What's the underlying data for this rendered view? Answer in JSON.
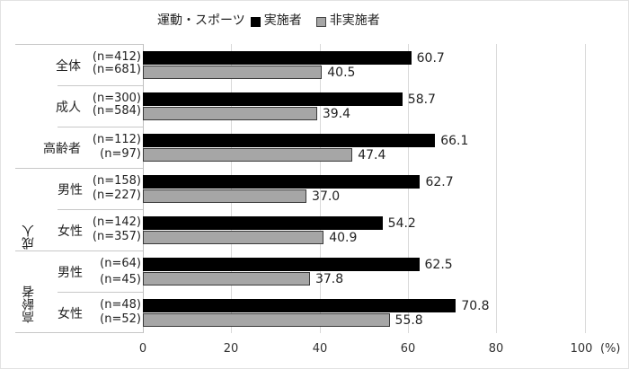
{
  "chart_data": {
    "type": "bar",
    "orientation": "horizontal",
    "legend_title": "運動・スポーツ",
    "legend_position": "top",
    "xlabel": "(%)",
    "xlim": [
      0,
      100
    ],
    "xticks": [
      "0",
      "20",
      "40",
      "60",
      "80",
      "100"
    ],
    "grid": true,
    "categories": [
      {
        "group": "",
        "label": "全体",
        "n_active": "(n=412)",
        "n_inactive": "(n=681)"
      },
      {
        "group": "",
        "label": "成人",
        "n_active": "(n=300)",
        "n_inactive": "(n=584)"
      },
      {
        "group": "",
        "label": "高齢者",
        "n_active": "(n=112)",
        "n_inactive": "(n=97)"
      },
      {
        "group": "成人",
        "label": "男性",
        "n_active": "(n=158)",
        "n_inactive": "(n=227)"
      },
      {
        "group": "成人",
        "label": "女性",
        "n_active": "(n=142)",
        "n_inactive": "(n=357)"
      },
      {
        "group": "高齢者",
        "label": "男性",
        "n_active": "(n=64)",
        "n_inactive": "(n=45)"
      },
      {
        "group": "高齢者",
        "label": "女性",
        "n_active": "(n=48)",
        "n_inactive": "(n=52)"
      }
    ],
    "series": [
      {
        "name": "実施者",
        "color": "#000000",
        "values": [
          60.7,
          58.7,
          66.1,
          62.7,
          54.2,
          62.5,
          70.8
        ],
        "labels": [
          "60.7",
          "58.7",
          "66.1",
          "62.7",
          "54.2",
          "62.5",
          "70.8"
        ]
      },
      {
        "name": "非実施者",
        "color": "#a6a6a6",
        "values": [
          40.5,
          39.4,
          47.4,
          37.0,
          40.9,
          37.8,
          55.8
        ],
        "labels": [
          "40.5",
          "39.4",
          "47.4",
          "37.0",
          "40.9",
          "37.8",
          "55.8"
        ]
      }
    ],
    "group_labels": [
      "成人",
      "高齢者"
    ]
  }
}
